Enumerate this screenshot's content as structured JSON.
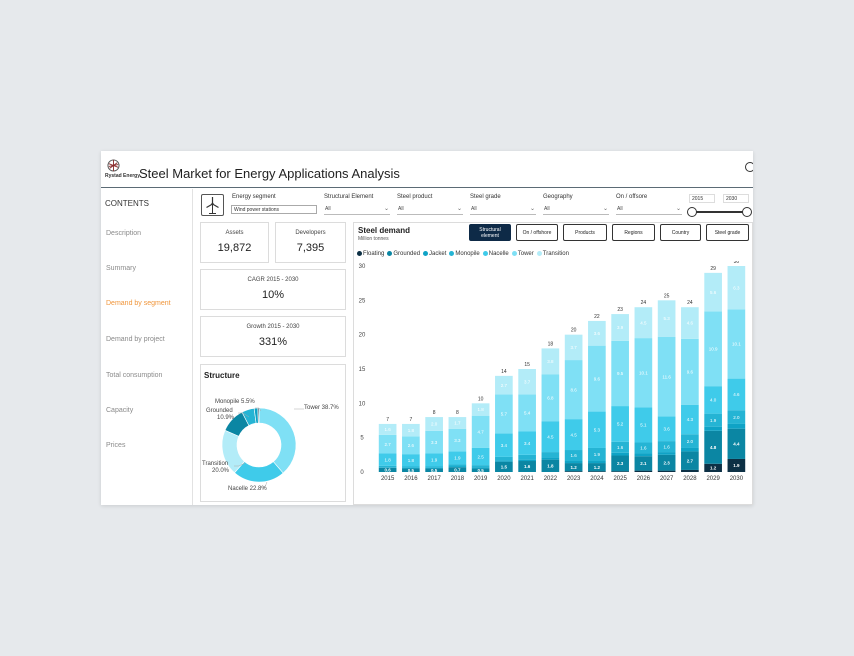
{
  "header": {
    "title": "Steel Market for Energy Applications Analysis",
    "logo_text": "Rystad Energy"
  },
  "sidebar": {
    "title": "CONTENTS",
    "items": [
      {
        "label": "Description"
      },
      {
        "label": "Summary"
      },
      {
        "label": "Demand by segment",
        "active": true
      },
      {
        "label": "Demand by project"
      },
      {
        "label": "Total consumption"
      },
      {
        "label": "Capacity"
      },
      {
        "label": "Prices"
      }
    ]
  },
  "filters": {
    "energy_segment": {
      "label": "Energy segment",
      "value": "Wind power stations"
    },
    "structural_element": {
      "label": "Structural Element",
      "value": "All"
    },
    "steel_product": {
      "label": "Steel product",
      "value": "All"
    },
    "steel_grade": {
      "label": "Steel grade",
      "value": "All"
    },
    "geography": {
      "label": "Geography",
      "value": "All"
    },
    "on_offshore": {
      "label": "On / offsore",
      "value": "All"
    },
    "year_from": "2015",
    "year_to": "2030"
  },
  "kpis": {
    "assets": {
      "label": "Assets",
      "value": "19,872"
    },
    "developers": {
      "label": "Developers",
      "value": "7,395"
    },
    "cagr": {
      "label": "CAGR 2015 - 2030",
      "value": "10%"
    },
    "growth": {
      "label": "Growth 2015 - 2030",
      "value": "331%"
    }
  },
  "structure": {
    "title": "Structure",
    "slices": [
      {
        "name": "Tower",
        "value": 38.7,
        "color": "#7fe0f5",
        "label": "Tower 38.7%"
      },
      {
        "name": "Nacelle",
        "value": 22.8,
        "color": "#3fcbea",
        "label": "Nacelle 22.8%"
      },
      {
        "name": "Transition",
        "value": 20.0,
        "color": "#b3ecf8",
        "label_l1": "Transition",
        "label_l2": "20.0%"
      },
      {
        "name": "Grounded",
        "value": 10.9,
        "color": "#0b86a3",
        "label_l1": "Grounded",
        "label_l2": "10.9%"
      },
      {
        "name": "Monopile",
        "value": 5.5,
        "color": "#25b4d4",
        "label": "Monopile 5.5%"
      },
      {
        "name": "Jacket",
        "value": 1.6,
        "color": "#0fa3c6"
      },
      {
        "name": "Floating",
        "value": 0.5,
        "color": "#0d3045"
      }
    ]
  },
  "chart_tabs": [
    {
      "label_l1": "Structural",
      "label_l2": "element",
      "active": true
    },
    {
      "label_l1": "On / offshore",
      "label_l2": ""
    },
    {
      "label_l1": "Products",
      "label_l2": ""
    },
    {
      "label_l1": "Regions",
      "label_l2": ""
    },
    {
      "label_l1": "Country",
      "label_l2": ""
    },
    {
      "label_l1": "Steel grade",
      "label_l2": ""
    }
  ],
  "chart_data": {
    "type": "bar",
    "stacked": true,
    "title": "Steel demand",
    "subtitle": "Million tonnes",
    "categories": [
      "2015",
      "2016",
      "2017",
      "2018",
      "2019",
      "2020",
      "2021",
      "2022",
      "2023",
      "2024",
      "2025",
      "2026",
      "2027",
      "2028",
      "2029",
      "2030"
    ],
    "ylim": [
      0,
      30
    ],
    "yticks": [
      0,
      5,
      10,
      15,
      20,
      25,
      30
    ],
    "totals": [
      7,
      7,
      8,
      8,
      10,
      14,
      15,
      18,
      20,
      22,
      23,
      24,
      25,
      24,
      29,
      30
    ],
    "series": [
      {
        "name": "Floating",
        "color": "#0d3045",
        "values": [
          0,
          0,
          0,
          0,
          0,
          0,
          0,
          0,
          0.1,
          0.1,
          0.1,
          0.2,
          0.2,
          0.3,
          1.2,
          1.9
        ]
      },
      {
        "name": "Grounded",
        "color": "#0b86a3",
        "values": [
          0.6,
          0.5,
          0.5,
          0.7,
          0.5,
          1.5,
          1.6,
          1.8,
          1.2,
          1.2,
          2.3,
          2.1,
          2.3,
          2.7,
          4.8,
          4.4
        ]
      },
      {
        "name": "Jacket",
        "color": "#0fa3c6",
        "values": [
          0.1,
          0.1,
          0.1,
          0.1,
          0.2,
          0.2,
          0.2,
          0.3,
          0.3,
          0.3,
          0.4,
          0.4,
          0.4,
          0.5,
          0.6,
          0.7
        ]
      },
      {
        "name": "Monopile",
        "color": "#25b4d4",
        "values": [
          0.2,
          0.2,
          0.2,
          0.3,
          0.3,
          0.5,
          0.7,
          0.8,
          1.6,
          1.9,
          1.6,
          1.6,
          1.6,
          2.0,
          1.9,
          2.0
        ]
      },
      {
        "name": "Nacelle",
        "color": "#3fcbea",
        "values": [
          1.8,
          1.8,
          1.9,
          1.9,
          2.5,
          3.4,
          3.4,
          4.5,
          4.5,
          5.3,
          5.2,
          5.1,
          3.6,
          4.3,
          4.0,
          4.6
        ]
      },
      {
        "name": "Tower",
        "color": "#7fe0f5",
        "values": [
          2.7,
          2.6,
          3.3,
          3.3,
          4.7,
          5.7,
          5.4,
          6.8,
          8.6,
          9.6,
          9.5,
          10.1,
          11.6,
          9.6,
          10.9,
          10.1
        ]
      },
      {
        "name": "Transition",
        "color": "#b3ecf8",
        "values": [
          1.6,
          1.8,
          2.0,
          1.7,
          1.8,
          2.7,
          3.7,
          3.8,
          3.7,
          3.6,
          3.9,
          4.5,
          5.3,
          4.6,
          5.6,
          6.3
        ]
      }
    ],
    "segment_labels": [
      [
        "",
        "0.6",
        "",
        "",
        "1.8",
        "2.7",
        "1.6"
      ],
      [
        "",
        "0.5",
        "",
        "",
        "1.8",
        "2.6",
        "1.8"
      ],
      [
        "",
        "0.5",
        "",
        "",
        "1.9",
        "3.3",
        "2.0"
      ],
      [
        "",
        "0.7",
        "",
        "",
        "1.9",
        "3.3",
        "1.7"
      ],
      [
        "",
        "0.5",
        "",
        "",
        "2.5",
        "4.7",
        "1.8"
      ],
      [
        "",
        "1.5",
        "",
        "",
        "3.4",
        "5.7",
        "2.7"
      ],
      [
        "",
        "1.6",
        "",
        "",
        "3.4",
        "5.4",
        "3.7"
      ],
      [
        "",
        "1.8",
        "",
        "",
        "4.5",
        "6.8",
        "3.8"
      ],
      [
        "",
        "1.2",
        "",
        "1.6",
        "4.5",
        "8.6",
        "3.7"
      ],
      [
        "",
        "1.2",
        "",
        "1.9",
        "5.3",
        "9.6",
        "3.6"
      ],
      [
        "",
        "2.3",
        "",
        "1.6",
        "5.2",
        "9.5",
        "3.9"
      ],
      [
        "",
        "2.1",
        "",
        "1.6",
        "5.1",
        "10.1",
        "4.5"
      ],
      [
        "",
        "2.3",
        "",
        "1.6",
        "3.6",
        "11.6",
        "5.3"
      ],
      [
        "",
        "2.7",
        "",
        "2.0",
        "4.3",
        "9.6",
        "4.6"
      ],
      [
        "1.2",
        "4.8",
        "",
        "1.9",
        "4.0",
        "10.9",
        "5.6"
      ],
      [
        "1.9",
        "4.4",
        "",
        "2.0",
        "4.6",
        "10.1",
        "6.3"
      ]
    ]
  }
}
